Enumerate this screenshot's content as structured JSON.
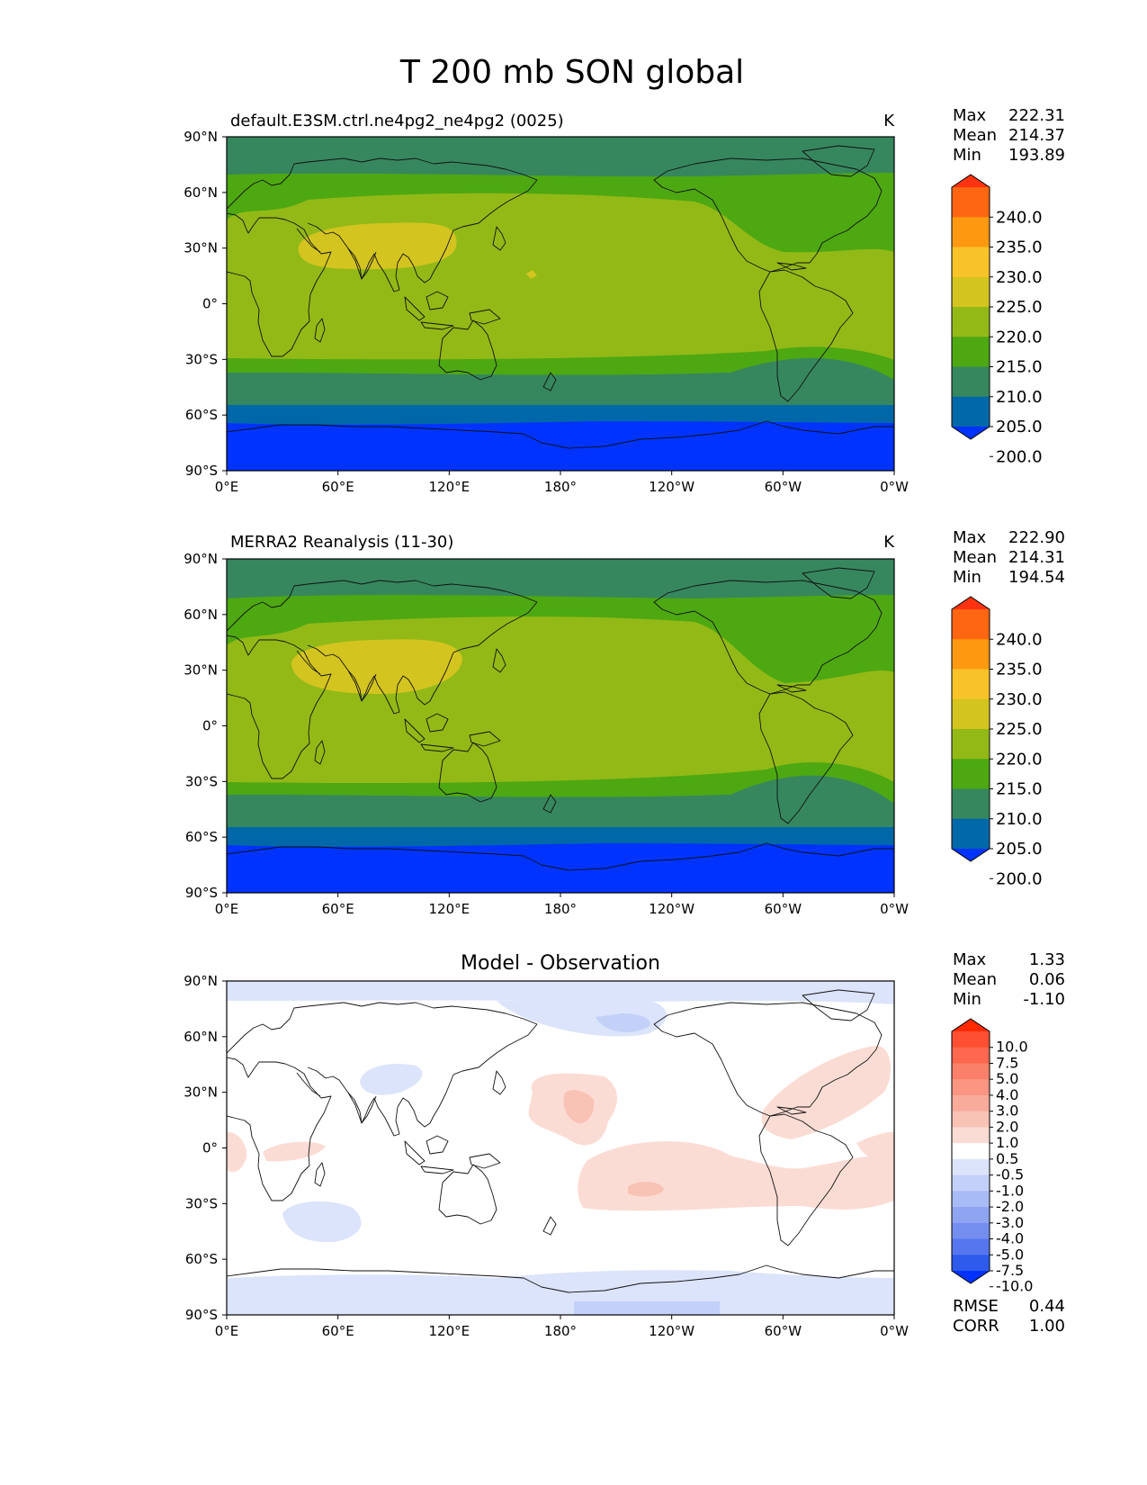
{
  "figure": {
    "title": "T 200 mb SON global"
  },
  "chart_data": [
    {
      "type": "heatmap",
      "title": "default.E3SM.ctrl.ne4pg2_ne4pg2 (0025)",
      "units": "K",
      "x_ticks": [
        "0°E",
        "60°E",
        "120°E",
        "180°",
        "120°W",
        "60°W",
        "0°W"
      ],
      "y_ticks": [
        "90°N",
        "60°N",
        "30°N",
        "0°",
        "30°S",
        "60°S",
        "90°S"
      ],
      "stats": {
        "max_label": "Max",
        "max": "222.31",
        "mean_label": "Mean",
        "mean": "214.37",
        "min_label": "Min",
        "min": "193.89"
      },
      "colorbar": {
        "labels": [
          "240.0",
          "235.0",
          "230.0",
          "225.0",
          "220.0",
          "215.0",
          "210.0",
          "205.0",
          "200.0"
        ],
        "colors": [
          "#ff3311",
          "#ff6611",
          "#ff9911",
          "#f8c32a",
          "#d4c420",
          "#93b917",
          "#4da812",
          "#36875e",
          "#0068a8",
          "#0033ff"
        ]
      },
      "fields": [
        {
          "range": "205-210 K",
          "color": "#36875e"
        },
        {
          "range": "210-215 K",
          "color": "#4da812"
        },
        {
          "range": "215-220 K",
          "color": "#93b917"
        },
        {
          "range": "220-225 K",
          "color": "#d4c420"
        },
        {
          "range": "200-205 K",
          "color": "#0068a8"
        },
        {
          "range": "<200 K",
          "color": "#0033ff"
        }
      ]
    },
    {
      "type": "heatmap",
      "title": "MERRA2 Reanalysis (11-30)",
      "units": "K",
      "x_ticks": [
        "0°E",
        "60°E",
        "120°E",
        "180°",
        "120°W",
        "60°W",
        "0°W"
      ],
      "y_ticks": [
        "90°N",
        "60°N",
        "30°N",
        "0°",
        "30°S",
        "60°S",
        "90°S"
      ],
      "stats": {
        "max_label": "Max",
        "max": "222.90",
        "mean_label": "Mean",
        "mean": "214.31",
        "min_label": "Min",
        "min": "194.54"
      },
      "colorbar": {
        "labels": [
          "240.0",
          "235.0",
          "230.0",
          "225.0",
          "220.0",
          "215.0",
          "210.0",
          "205.0",
          "200.0"
        ],
        "colors": [
          "#ff3311",
          "#ff6611",
          "#ff9911",
          "#f8c32a",
          "#d4c420",
          "#93b917",
          "#4da812",
          "#36875e",
          "#0068a8",
          "#0033ff"
        ]
      },
      "fields": [
        {
          "range": "205-210 K",
          "color": "#36875e"
        },
        {
          "range": "210-215 K",
          "color": "#4da812"
        },
        {
          "range": "215-220 K",
          "color": "#93b917"
        },
        {
          "range": "220-225 K",
          "color": "#d4c420"
        },
        {
          "range": "200-205 K",
          "color": "#0068a8"
        },
        {
          "range": "<200 K",
          "color": "#0033ff"
        }
      ]
    },
    {
      "type": "heatmap",
      "title": "Model - Observation",
      "units": "",
      "x_ticks": [
        "0°E",
        "60°E",
        "120°E",
        "180°",
        "120°W",
        "60°W",
        "0°W"
      ],
      "y_ticks": [
        "90°N",
        "60°N",
        "30°N",
        "0°",
        "30°S",
        "60°S",
        "90°S"
      ],
      "stats": {
        "max_label": "Max",
        "max": "1.33",
        "mean_label": "Mean",
        "mean": "0.06",
        "min_label": "Min",
        "min": "-1.10"
      },
      "metrics": {
        "rmse_label": "RMSE",
        "rmse": "0.44",
        "corr_label": "CORR",
        "corr": "1.00"
      },
      "colorbar": {
        "labels": [
          "10.0",
          "7.5",
          "5.0",
          "4.0",
          "3.0",
          "2.0",
          "1.0",
          "0.5",
          "-0.5",
          "-1.0",
          "-2.0",
          "-3.0",
          "-4.0",
          "-5.0",
          "-7.5",
          "-10.0"
        ],
        "colors": [
          "#ff2a00",
          "#fe4f33",
          "#fd684e",
          "#fb8069",
          "#fa9682",
          "#f8ab9b",
          "#f8c2b5",
          "#fbdcd4",
          "#ffffff",
          "#dce4fb",
          "#c3d0f8",
          "#a9bbf5",
          "#8fa5f2",
          "#748ef0",
          "#5576ee",
          "#2e5bec",
          "#0033ff"
        ]
      },
      "fields": [
        {
          "range": "0.5-1.0 K",
          "color": "#fbdcd4"
        },
        {
          "range": "1.0-2.0 K",
          "color": "#f8c2b5"
        },
        {
          "range": "-1.0--0.5 K",
          "color": "#dce4fb"
        },
        {
          "range": "-2.0--1.0 K",
          "color": "#c3d0f8"
        }
      ]
    }
  ]
}
